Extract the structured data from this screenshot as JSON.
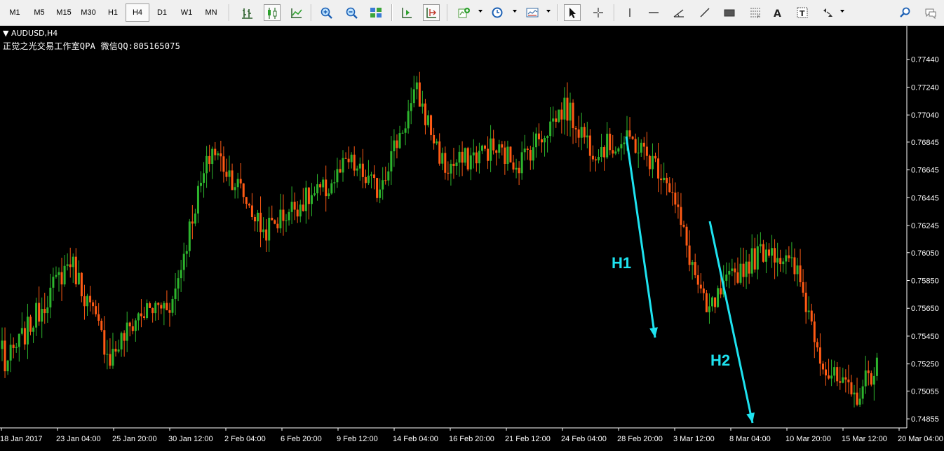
{
  "toolbar": {
    "timeframes": [
      "M1",
      "M5",
      "M15",
      "M30",
      "H1",
      "H4",
      "D1",
      "W1",
      "MN"
    ],
    "active_timeframe": "H4",
    "icons": [
      "bar-chart-icon",
      "candlestick-chart-icon",
      "line-chart-icon",
      "zoom-in-icon",
      "zoom-out-icon",
      "tile-windows-icon",
      "chart-shift-icon",
      "autoscroll-icon",
      "indicators-icon",
      "periods-clock-icon",
      "templates-icon",
      "cursor-arrow-icon",
      "crosshair-icon",
      "vertical-line-icon",
      "horizontal-line-icon",
      "angle-trendline-icon",
      "trendline-icon",
      "rectangle-icon",
      "fibonacci-icon",
      "text-label-icon",
      "text-box-icon",
      "arrows-icon",
      "search-icon",
      "chat-icon"
    ]
  },
  "chart_header": {
    "symbol": "AUDUSD,H4",
    "note": "正觉之光交易工作室QPA 微信QQ:805165075"
  },
  "annotations": [
    {
      "label": "H1",
      "color": "#1ee3f0"
    },
    {
      "label": "H2",
      "color": "#1ee3f0"
    }
  ],
  "chart_data": {
    "type": "candlestick",
    "title": "AUDUSD,H4",
    "colors": {
      "background": "#000000",
      "bull": "#2db52d",
      "bear": "#ff5a14",
      "axis": "#ffffff",
      "annotation": "#1ee3f0"
    },
    "grid": false,
    "ylim": [
      0.7479,
      0.7763
    ],
    "price_ticks": [
      "0.77440",
      "0.77240",
      "0.77040",
      "0.76845",
      "0.76645",
      "0.76445",
      "0.76245",
      "0.76050",
      "0.75850",
      "0.75650",
      "0.75450",
      "0.75250",
      "0.75055",
      "0.74855"
    ],
    "time_ticks": [
      "18 Jan 2017",
      "23 Jan 04:00",
      "25 Jan 20:00",
      "30 Jan 12:00",
      "2 Feb 04:00",
      "6 Feb 20:00",
      "9 Feb 12:00",
      "14 Feb 04:00",
      "16 Feb 20:00",
      "21 Feb 12:00",
      "24 Feb 04:00",
      "28 Feb 20:00",
      "3 Mar 12:00",
      "8 Mar 04:00",
      "10 Mar 20:00",
      "15 Mar 12:00",
      "20 Mar 04:00"
    ],
    "segments": [
      {
        "from": 0.754,
        "to": 0.754,
        "n": 1
      },
      {
        "from": 0.752,
        "to": 0.76,
        "n": 24
      },
      {
        "from": 0.76,
        "to": 0.753,
        "n": 14
      },
      {
        "from": 0.753,
        "to": 0.756,
        "n": 10
      },
      {
        "from": 0.756,
        "to": 0.757,
        "n": 12
      },
      {
        "from": 0.757,
        "to": 0.764,
        "n": 8
      },
      {
        "from": 0.764,
        "to": 0.768,
        "n": 6
      },
      {
        "from": 0.768,
        "to": 0.765,
        "n": 10
      },
      {
        "from": 0.765,
        "to": 0.762,
        "n": 8
      },
      {
        "from": 0.762,
        "to": 0.764,
        "n": 12
      },
      {
        "from": 0.764,
        "to": 0.765,
        "n": 10
      },
      {
        "from": 0.765,
        "to": 0.767,
        "n": 8
      },
      {
        "from": 0.767,
        "to": 0.765,
        "n": 10
      },
      {
        "from": 0.765,
        "to": 0.772,
        "n": 14
      },
      {
        "from": 0.772,
        "to": 0.7665,
        "n": 10
      },
      {
        "from": 0.7665,
        "to": 0.768,
        "n": 16
      },
      {
        "from": 0.768,
        "to": 0.767,
        "n": 10
      },
      {
        "from": 0.767,
        "to": 0.769,
        "n": 8
      },
      {
        "from": 0.769,
        "to": 0.771,
        "n": 8
      },
      {
        "from": 0.771,
        "to": 0.768,
        "n": 10
      },
      {
        "from": 0.768,
        "to": 0.7685,
        "n": 14
      },
      {
        "from": 0.7685,
        "to": 0.766,
        "n": 12
      },
      {
        "from": 0.766,
        "to": 0.756,
        "n": 14
      },
      {
        "from": 0.756,
        "to": 0.759,
        "n": 10
      },
      {
        "from": 0.759,
        "to": 0.761,
        "n": 12
      },
      {
        "from": 0.761,
        "to": 0.759,
        "n": 10
      },
      {
        "from": 0.759,
        "to": 0.752,
        "n": 10
      },
      {
        "from": 0.752,
        "to": 0.75,
        "n": 10
      },
      {
        "from": 0.75,
        "to": 0.7525,
        "n": 8
      }
    ]
  }
}
